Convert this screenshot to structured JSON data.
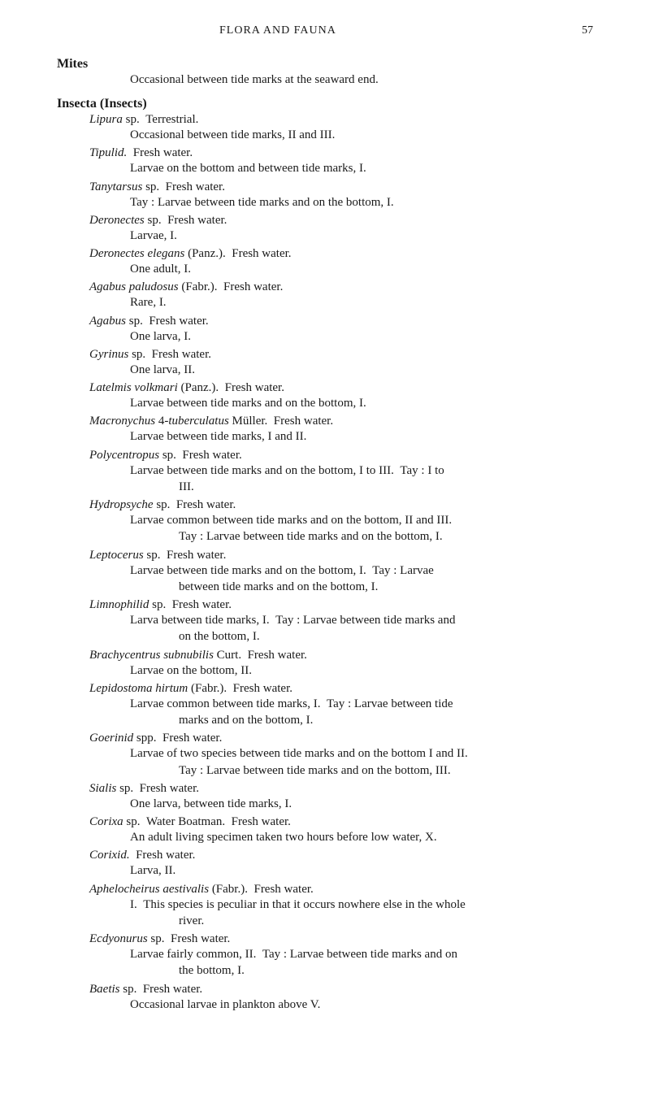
{
  "header": {
    "title": "FLORA AND FAUNA",
    "page_number": "57"
  },
  "sections": [
    {
      "heading": "Mites",
      "note": "Occasional between tide marks at the seaward end.",
      "entries": []
    },
    {
      "heading": "Insecta (Insects)",
      "note": null,
      "entries": [
        {
          "title_html": "<span class='genus'>Lipura</span> sp.&nbsp;&nbsp;Terrestrial.",
          "details": [
            "Occasional between tide marks, II and III."
          ]
        },
        {
          "title_html": "<span class='genus'>Tipulid.</span>&nbsp;&nbsp;Fresh water.",
          "details": [
            "Larvae on the bottom and between tide marks, I."
          ]
        },
        {
          "title_html": "<span class='genus'>Tanytarsus</span> sp.&nbsp;&nbsp;Fresh water.",
          "details": [
            "Tay : Larvae between tide marks and on the bottom, I."
          ]
        },
        {
          "title_html": "<span class='genus'>Deronectes</span> sp.&nbsp;&nbsp;Fresh water.",
          "details": [
            "Larvae, I."
          ]
        },
        {
          "title_html": "<span class='genus'>Deronectes elegans</span> (Panz.).&nbsp;&nbsp;Fresh water.",
          "details": [
            "One adult, I."
          ]
        },
        {
          "title_html": "<span class='genus'>Agabus paludosus</span> (Fabr.).&nbsp;&nbsp;Fresh water.",
          "details": [
            "Rare, I."
          ]
        },
        {
          "title_html": "<span class='genus'>Agabus</span> sp.&nbsp;&nbsp;Fresh water.",
          "details": [
            "One larva, I."
          ]
        },
        {
          "title_html": "<span class='genus'>Gyrinus</span> sp.&nbsp;&nbsp;Fresh water.",
          "details": [
            "One larva, II."
          ]
        },
        {
          "title_html": "<span class='genus'>Latelmis volkmari</span> (Panz.).&nbsp;&nbsp;Fresh water.",
          "details": [
            "Larvae between tide marks and on the bottom, I."
          ]
        },
        {
          "title_html": "<span class='genus'>Macronychus</span> 4-<span class='genus'>tuberculatus</span> Müller.&nbsp;&nbsp;Fresh water.",
          "details": [
            "Larvae between tide marks, I and II."
          ]
        },
        {
          "title_html": "<span class='genus'>Polycentropus</span> sp.&nbsp;&nbsp;Fresh water.",
          "details": [
            "Larvae between tide marks and on the bottom, I to III.&nbsp;&nbsp;Tay : I to",
            "<span class='roman-indent'>III.</span>"
          ]
        },
        {
          "title_html": "<span class='genus'>Hydropsyche</span> sp.&nbsp;&nbsp;Fresh water.",
          "details": [
            "Larvae common between tide marks and on the bottom, II and III.",
            "<span class='roman-indent'>Tay : Larvae between tide marks and on the bottom, I.</span>"
          ]
        },
        {
          "title_html": "<span class='genus'>Leptocerus</span> sp.&nbsp;&nbsp;Fresh water.",
          "details": [
            "Larvae between tide marks and on the bottom, I.&nbsp;&nbsp;Tay : Larvae",
            "<span class='roman-indent'>between tide marks and on the bottom, I.</span>"
          ]
        },
        {
          "title_html": "<span class='genus'>Limnophilid</span> sp.&nbsp;&nbsp;Fresh water.",
          "details": [
            "Larva between tide marks, I.&nbsp;&nbsp;Tay : Larvae between tide marks and",
            "<span class='roman-indent'>on the bottom, I.</span>"
          ]
        },
        {
          "title_html": "<span class='genus'>Brachycentrus subnubilis</span> Curt.&nbsp;&nbsp;Fresh water.",
          "details": [
            "Larvae on the bottom, II."
          ]
        },
        {
          "title_html": "<span class='genus'>Lepidostoma hirtum</span> (Fabr.).&nbsp;&nbsp;Fresh water.",
          "details": [
            "Larvae common between tide marks, I.&nbsp;&nbsp;Tay : Larvae between tide",
            "<span class='roman-indent'>marks and on the bottom, I.</span>"
          ]
        },
        {
          "title_html": "<span class='genus'>Goerinid</span> spp.&nbsp;&nbsp;Fresh water.",
          "details": [
            "Larvae of two species between tide marks and on the bottom I and II.",
            "<span class='roman-indent'>Tay : Larvae between tide marks and on the bottom, III.</span>"
          ]
        },
        {
          "title_html": "<span class='genus'>Sialis</span> sp.&nbsp;&nbsp;Fresh water.",
          "details": [
            "One larva, between tide marks, I."
          ]
        },
        {
          "title_html": "<span class='genus'>Corixa</span> sp.&nbsp;&nbsp;Water Boatman.&nbsp;&nbsp;Fresh water.",
          "details": [
            "An adult living specimen taken two hours before low water, X."
          ]
        },
        {
          "title_html": "<span class='genus'>Corixid.</span>&nbsp;&nbsp;Fresh water.",
          "details": [
            "Larva, II."
          ]
        },
        {
          "title_html": "<span class='genus'>Aphelocheirus aestivalis</span> (Fabr.).&nbsp;&nbsp;Fresh water.",
          "details": [
            "I.&nbsp;&nbsp;This species is peculiar in that it occurs nowhere else in the whole",
            "<span class='roman-indent'>river.</span>"
          ]
        },
        {
          "title_html": "<span class='genus'>Ecdyonurus</span> sp.&nbsp;&nbsp;Fresh water.",
          "details": [
            "Larvae fairly common, II.&nbsp;&nbsp;Tay : Larvae between tide marks and on",
            "<span class='roman-indent'>the bottom, I.</span>"
          ]
        },
        {
          "title_html": "<span class='genus'>Baetis</span> sp.&nbsp;&nbsp;Fresh water.",
          "details": [
            "Occasional larvae in plankton above V."
          ]
        }
      ]
    }
  ]
}
